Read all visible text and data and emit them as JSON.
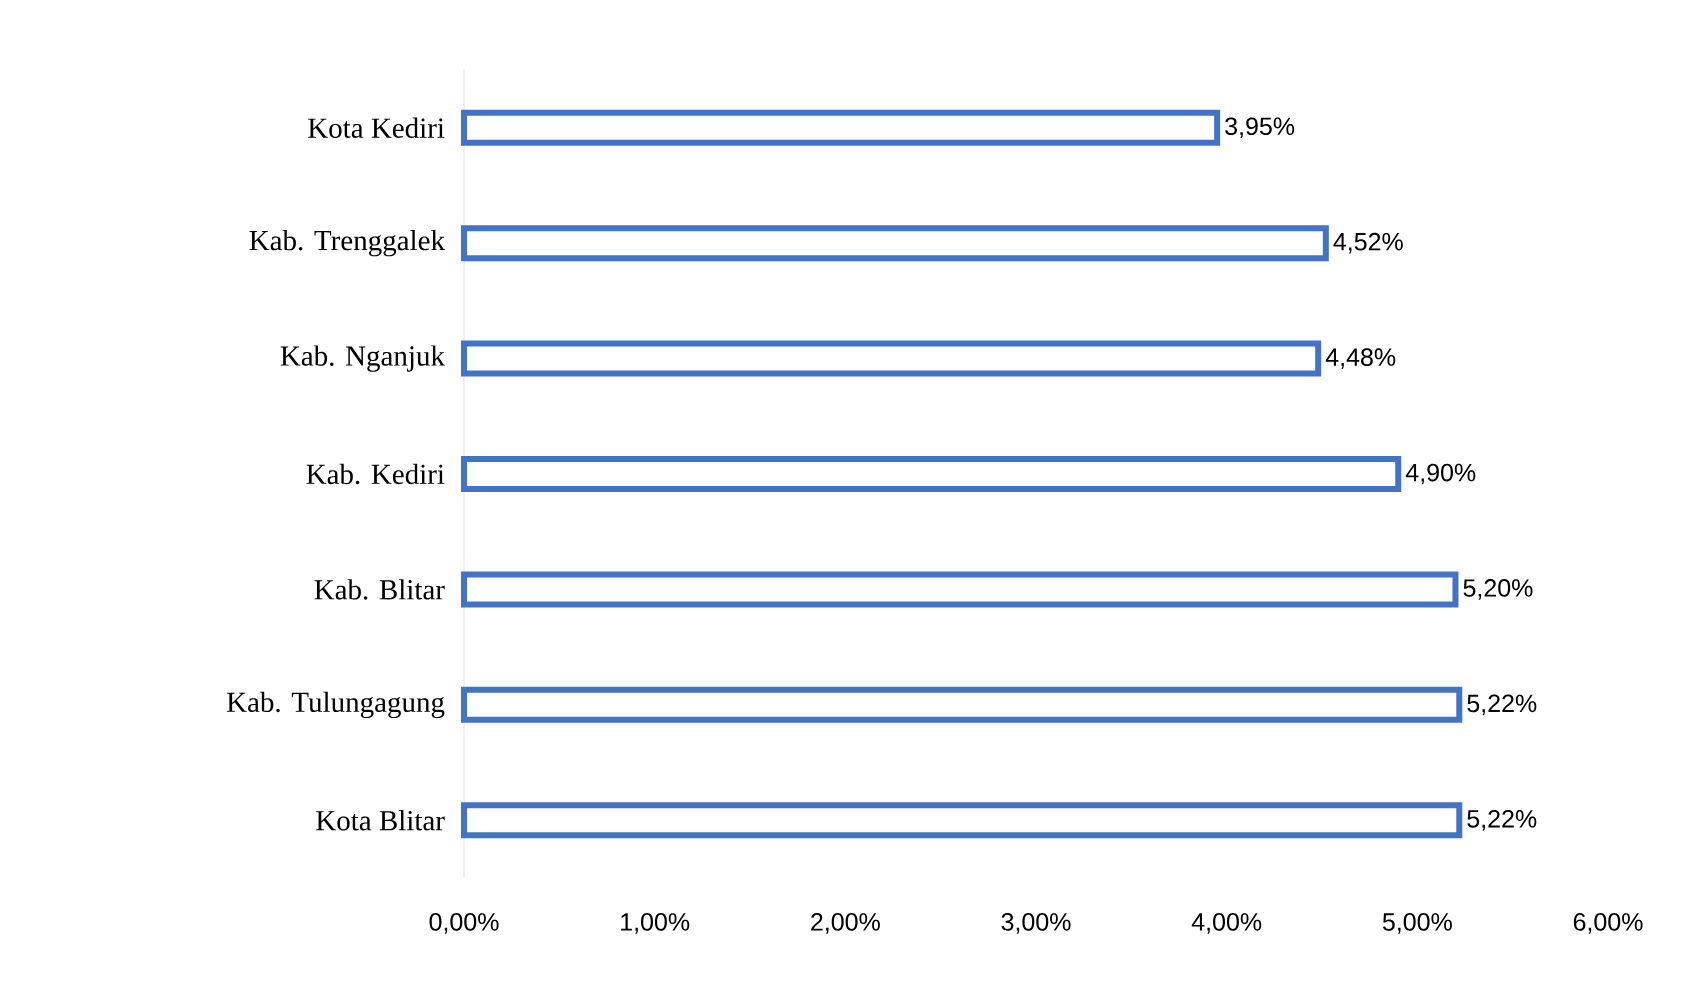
{
  "chart_data": {
    "type": "bar",
    "orientation": "horizontal",
    "categories": [
      "Kota Kediri",
      "Kab. Trenggalek",
      "Kab. Nganjuk",
      "Kab. Kediri",
      "Kab. Blitar",
      "Kab. Tulungagung",
      "Kota Blitar"
    ],
    "values": [
      3.95,
      4.52,
      4.48,
      4.9,
      5.2,
      5.22,
      5.22
    ],
    "value_labels": [
      "3,95%",
      "4,52%",
      "4,48%",
      "4,90%",
      "5,20%",
      "5,22%",
      "5,22%"
    ],
    "color": "#4472c4",
    "xlim": [
      0,
      6
    ],
    "xticks": [
      {
        "value": 0,
        "label": "0,00%"
      },
      {
        "value": 1,
        "label": "1,00%"
      },
      {
        "value": 2,
        "label": "2,00%"
      },
      {
        "value": 3,
        "label": "3,00%"
      },
      {
        "value": 4,
        "label": "4,00%"
      },
      {
        "value": 5,
        "label": "5,00%"
      },
      {
        "value": 6,
        "label": "6,00%"
      }
    ]
  }
}
